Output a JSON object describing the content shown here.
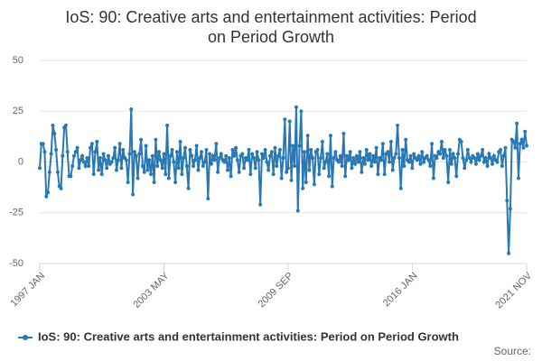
{
  "chart_data": {
    "type": "line",
    "title": "IoS: 90: Creative arts and entertainment activities: Period on Period Growth",
    "source": "Source:",
    "categories": [
      "1997 JAN",
      null,
      null,
      null,
      null,
      null,
      null,
      null,
      null,
      null,
      null,
      null,
      null,
      null,
      null,
      null,
      null,
      null,
      null,
      null,
      null,
      null,
      null,
      null,
      null,
      null,
      null,
      null,
      null,
      null,
      null,
      null,
      null,
      null,
      null,
      null,
      null,
      null,
      null,
      null,
      null,
      null,
      null,
      null,
      null,
      null,
      null,
      null,
      null,
      null,
      null,
      null,
      null,
      null,
      null,
      null,
      null,
      null,
      null,
      null,
      null,
      null,
      null,
      null,
      null,
      null,
      null,
      null,
      null,
      null,
      null,
      null,
      null,
      null,
      null,
      null,
      "2003 MAY",
      null,
      null,
      null,
      null,
      null,
      null,
      null,
      null,
      null,
      null,
      null,
      null,
      null,
      null,
      null,
      null,
      null,
      null,
      null,
      null,
      null,
      null,
      null,
      null,
      null,
      null,
      null,
      null,
      null,
      null,
      null,
      null,
      null,
      null,
      null,
      null,
      null,
      null,
      null,
      null,
      null,
      null,
      null,
      null,
      null,
      null,
      null,
      null,
      null,
      null,
      null,
      null,
      null,
      null,
      null,
      null,
      null,
      null,
      null,
      null,
      null,
      null,
      null,
      null,
      null,
      null,
      null,
      null,
      null,
      null,
      null,
      null,
      null,
      null,
      null,
      "2009 SEP",
      null,
      null,
      null,
      null,
      null,
      null,
      null,
      null,
      null,
      null,
      null,
      null,
      null,
      null,
      null,
      null,
      null,
      null,
      null,
      null,
      null,
      null,
      null,
      null,
      null,
      null,
      null,
      null,
      null,
      null,
      null,
      null,
      null,
      null,
      null,
      null,
      null,
      null,
      null,
      null,
      null,
      null,
      null,
      null,
      null,
      null,
      null,
      null,
      null,
      null,
      null,
      null,
      null,
      null,
      null,
      null,
      null,
      null,
      null,
      null,
      null,
      null,
      null,
      null,
      null,
      null,
      null,
      null,
      null,
      null,
      null,
      null,
      null,
      null,
      null,
      "2016 JAN",
      null,
      null,
      null,
      null,
      null,
      null,
      null,
      null,
      null,
      null,
      null,
      null,
      null,
      null,
      null,
      null,
      null,
      null,
      null,
      null,
      null,
      null,
      null,
      null,
      null,
      null,
      null,
      null,
      null,
      null,
      null,
      null,
      null,
      null,
      null,
      null,
      null,
      null,
      null,
      null,
      null,
      null,
      null,
      null,
      null,
      null,
      null,
      null,
      null,
      null,
      null,
      null,
      null,
      null,
      null,
      null,
      null,
      null,
      null,
      null,
      null,
      null,
      null,
      null,
      null,
      null,
      null,
      null,
      null,
      "2021 NOV"
    ],
    "series": [
      {
        "name": "IoS: 90: Creative arts and entertainment activities: Period on Period Growth",
        "color": "#2878b4",
        "values": [
          -3,
          9,
          9,
          5,
          -17,
          -15,
          -5,
          4,
          18,
          14,
          6,
          -5,
          -12,
          -13,
          3,
          17,
          18,
          5,
          -7,
          -7,
          -2,
          3,
          5,
          7,
          -3,
          1,
          3,
          0,
          -2,
          2,
          -2,
          7,
          9,
          -6,
          5,
          10,
          -4,
          2,
          -6,
          4,
          1,
          -3,
          3,
          -1,
          0,
          2,
          7,
          -4,
          1,
          9,
          -3,
          6,
          2,
          1,
          -10,
          4,
          26,
          -16,
          5,
          3,
          -8,
          4,
          11,
          -2,
          -5,
          8,
          -4,
          1,
          -6,
          3,
          -10,
          11,
          -2,
          5,
          1,
          -3,
          4,
          -6,
          18,
          -8,
          3,
          6,
          0,
          -10,
          5,
          -3,
          10,
          -6,
          2,
          7,
          -2,
          -13,
          6,
          3,
          -2,
          1,
          8,
          -4,
          2,
          5,
          -2,
          0,
          6,
          -18,
          4,
          -1,
          3,
          1,
          9,
          -5,
          2,
          4,
          1,
          0,
          3,
          -4,
          2,
          -7,
          6,
          3,
          7,
          1,
          -5,
          3,
          4,
          -3,
          2,
          1,
          6,
          -6,
          4,
          2,
          -3,
          5,
          1,
          -21,
          4,
          2,
          6,
          0,
          -4,
          3,
          5,
          -6,
          7,
          -2,
          3,
          6,
          -8,
          2,
          21,
          -5,
          -3,
          20,
          -9,
          8,
          -2,
          27,
          -24,
          8,
          25,
          -13,
          5,
          -10,
          13,
          -4,
          6,
          2,
          -11,
          5,
          6,
          -6,
          2,
          10,
          -3,
          0,
          4,
          -7,
          13,
          -12,
          2,
          5,
          1,
          0,
          3,
          -2,
          14,
          -7,
          3,
          1,
          5,
          -3,
          2,
          -1,
          3,
          0,
          5,
          -5,
          2,
          -1,
          6,
          1,
          4,
          -2,
          3,
          0,
          7,
          -6,
          2,
          1,
          9,
          -6,
          4,
          5,
          0,
          10,
          -4,
          2,
          4,
          18,
          2,
          -13,
          6,
          -2,
          11,
          1,
          0,
          3,
          -3,
          4,
          2,
          1,
          3,
          -1,
          5,
          0,
          2,
          3,
          1,
          -2,
          9,
          -8,
          3,
          2,
          5,
          4,
          10,
          2,
          6,
          3,
          -10,
          6,
          -1,
          4,
          2,
          -7,
          4,
          11,
          10,
          2,
          -3,
          1,
          6,
          2,
          0,
          3,
          2,
          -1,
          4,
          1,
          3,
          6,
          0,
          2,
          -2,
          4,
          2,
          -1,
          3,
          1,
          0,
          5,
          6,
          -2,
          3,
          7,
          -19,
          -45,
          -23,
          11,
          10,
          7,
          19,
          -8,
          9,
          11,
          7,
          15,
          8
        ]
      }
    ],
    "ylim": [
      -50,
      50
    ],
    "yticks": [
      -50,
      -25,
      0,
      25,
      50
    ],
    "grid": true
  }
}
